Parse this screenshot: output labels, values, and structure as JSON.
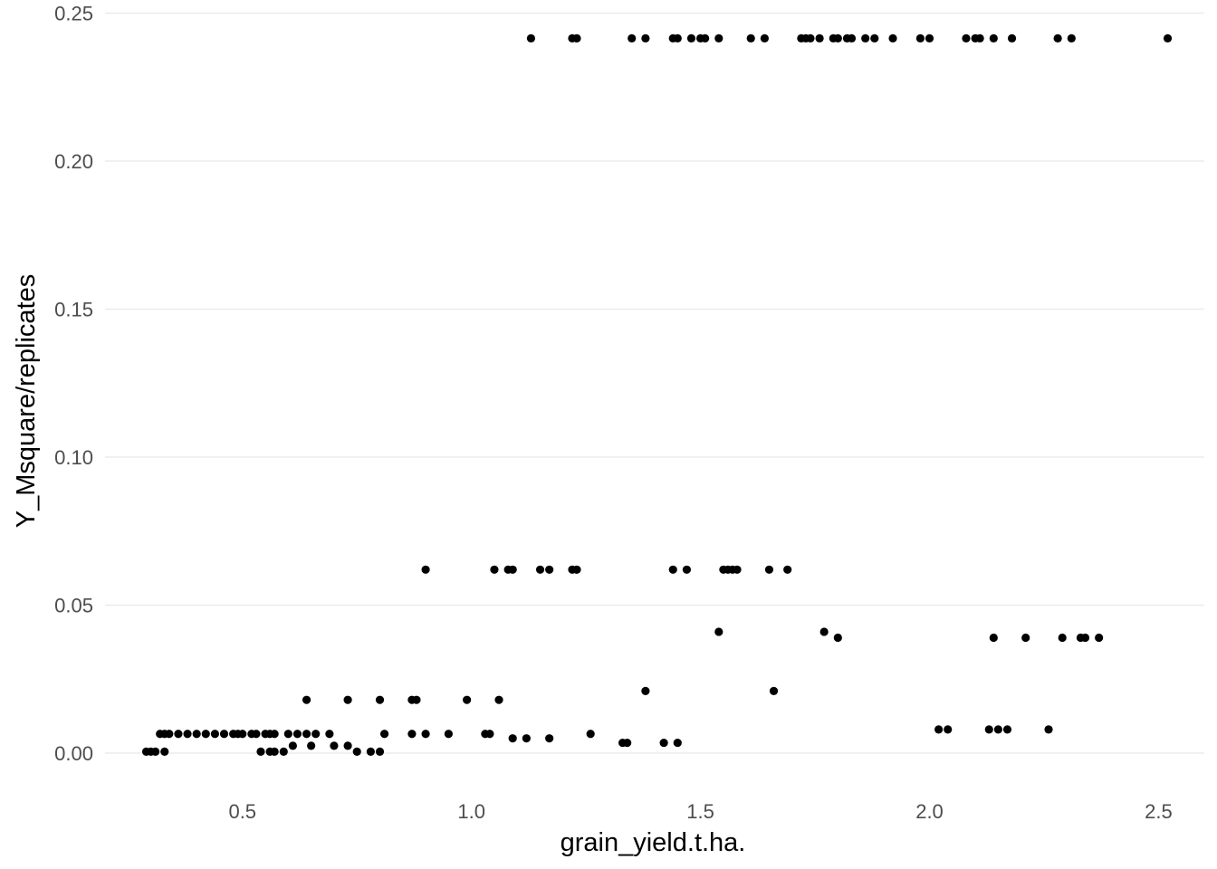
{
  "chart_data": {
    "type": "scatter",
    "title": "",
    "xlabel": "grain_yield.t.ha.",
    "ylabel": "Y_Msquare/replicates",
    "xlim": [
      0.2,
      2.6
    ],
    "ylim": [
      -0.011,
      0.252
    ],
    "grid": true,
    "legend": "none",
    "point_color": "#000000",
    "grid_color": "#ebebeb",
    "x_ticks": [
      {
        "value": 0.5,
        "label": "0.5"
      },
      {
        "value": 1.0,
        "label": "1.0"
      },
      {
        "value": 1.5,
        "label": "1.5"
      },
      {
        "value": 2.0,
        "label": "2.0"
      },
      {
        "value": 2.5,
        "label": "2.5"
      }
    ],
    "y_ticks": [
      {
        "value": 0.0,
        "label": "0.00"
      },
      {
        "value": 0.05,
        "label": "0.05"
      },
      {
        "value": 0.1,
        "label": "0.10"
      },
      {
        "value": 0.15,
        "label": "0.15"
      },
      {
        "value": 0.2,
        "label": "0.20"
      },
      {
        "value": 0.25,
        "label": "0.25"
      }
    ],
    "points": [
      {
        "x": 1.13,
        "y": 0.2415
      },
      {
        "x": 1.22,
        "y": 0.2415
      },
      {
        "x": 1.23,
        "y": 0.2415
      },
      {
        "x": 1.35,
        "y": 0.2415
      },
      {
        "x": 1.38,
        "y": 0.2415
      },
      {
        "x": 1.44,
        "y": 0.2415
      },
      {
        "x": 1.45,
        "y": 0.2415
      },
      {
        "x": 1.48,
        "y": 0.2415
      },
      {
        "x": 1.5,
        "y": 0.2415
      },
      {
        "x": 1.51,
        "y": 0.2415
      },
      {
        "x": 1.54,
        "y": 0.2415
      },
      {
        "x": 1.61,
        "y": 0.2415
      },
      {
        "x": 1.64,
        "y": 0.2415
      },
      {
        "x": 1.72,
        "y": 0.2415
      },
      {
        "x": 1.73,
        "y": 0.2415
      },
      {
        "x": 1.74,
        "y": 0.2415
      },
      {
        "x": 1.76,
        "y": 0.2415
      },
      {
        "x": 1.79,
        "y": 0.2415
      },
      {
        "x": 1.8,
        "y": 0.2415
      },
      {
        "x": 1.82,
        "y": 0.2415
      },
      {
        "x": 1.83,
        "y": 0.2415
      },
      {
        "x": 1.86,
        "y": 0.2415
      },
      {
        "x": 1.88,
        "y": 0.2415
      },
      {
        "x": 1.92,
        "y": 0.2415
      },
      {
        "x": 1.98,
        "y": 0.2415
      },
      {
        "x": 2.0,
        "y": 0.2415
      },
      {
        "x": 2.08,
        "y": 0.2415
      },
      {
        "x": 2.1,
        "y": 0.2415
      },
      {
        "x": 2.11,
        "y": 0.2415
      },
      {
        "x": 2.14,
        "y": 0.2415
      },
      {
        "x": 2.18,
        "y": 0.2415
      },
      {
        "x": 2.28,
        "y": 0.2415
      },
      {
        "x": 2.31,
        "y": 0.2415
      },
      {
        "x": 2.52,
        "y": 0.2415
      },
      {
        "x": 0.9,
        "y": 0.062
      },
      {
        "x": 1.05,
        "y": 0.062
      },
      {
        "x": 1.08,
        "y": 0.062
      },
      {
        "x": 1.09,
        "y": 0.062
      },
      {
        "x": 1.15,
        "y": 0.062
      },
      {
        "x": 1.17,
        "y": 0.062
      },
      {
        "x": 1.22,
        "y": 0.062
      },
      {
        "x": 1.23,
        "y": 0.062
      },
      {
        "x": 1.44,
        "y": 0.062
      },
      {
        "x": 1.47,
        "y": 0.062
      },
      {
        "x": 1.55,
        "y": 0.062
      },
      {
        "x": 1.56,
        "y": 0.062
      },
      {
        "x": 1.57,
        "y": 0.062
      },
      {
        "x": 1.58,
        "y": 0.062
      },
      {
        "x": 1.65,
        "y": 0.062
      },
      {
        "x": 1.69,
        "y": 0.062
      },
      {
        "x": 1.54,
        "y": 0.041
      },
      {
        "x": 1.77,
        "y": 0.041
      },
      {
        "x": 1.8,
        "y": 0.039
      },
      {
        "x": 2.14,
        "y": 0.039
      },
      {
        "x": 2.21,
        "y": 0.039
      },
      {
        "x": 2.29,
        "y": 0.039
      },
      {
        "x": 2.33,
        "y": 0.039
      },
      {
        "x": 2.34,
        "y": 0.039
      },
      {
        "x": 2.37,
        "y": 0.039
      },
      {
        "x": 1.38,
        "y": 0.021
      },
      {
        "x": 1.66,
        "y": 0.021
      },
      {
        "x": 0.64,
        "y": 0.018
      },
      {
        "x": 0.73,
        "y": 0.018
      },
      {
        "x": 0.8,
        "y": 0.018
      },
      {
        "x": 0.87,
        "y": 0.018
      },
      {
        "x": 0.88,
        "y": 0.018
      },
      {
        "x": 0.99,
        "y": 0.018
      },
      {
        "x": 1.06,
        "y": 0.018
      },
      {
        "x": 2.02,
        "y": 0.008
      },
      {
        "x": 2.04,
        "y": 0.008
      },
      {
        "x": 2.13,
        "y": 0.008
      },
      {
        "x": 2.15,
        "y": 0.008
      },
      {
        "x": 2.17,
        "y": 0.008
      },
      {
        "x": 2.26,
        "y": 0.008
      },
      {
        "x": 0.32,
        "y": 0.0065
      },
      {
        "x": 0.33,
        "y": 0.0065
      },
      {
        "x": 0.34,
        "y": 0.0065
      },
      {
        "x": 0.36,
        "y": 0.0065
      },
      {
        "x": 0.38,
        "y": 0.0065
      },
      {
        "x": 0.4,
        "y": 0.0065
      },
      {
        "x": 0.42,
        "y": 0.0065
      },
      {
        "x": 0.44,
        "y": 0.0065
      },
      {
        "x": 0.46,
        "y": 0.0065
      },
      {
        "x": 0.48,
        "y": 0.0065
      },
      {
        "x": 0.49,
        "y": 0.0065
      },
      {
        "x": 0.5,
        "y": 0.0065
      },
      {
        "x": 0.52,
        "y": 0.0065
      },
      {
        "x": 0.53,
        "y": 0.0065
      },
      {
        "x": 0.55,
        "y": 0.0065
      },
      {
        "x": 0.56,
        "y": 0.0065
      },
      {
        "x": 0.57,
        "y": 0.0065
      },
      {
        "x": 0.6,
        "y": 0.0065
      },
      {
        "x": 0.62,
        "y": 0.0065
      },
      {
        "x": 0.64,
        "y": 0.0065
      },
      {
        "x": 0.66,
        "y": 0.0065
      },
      {
        "x": 0.69,
        "y": 0.0065
      },
      {
        "x": 0.81,
        "y": 0.0065
      },
      {
        "x": 0.87,
        "y": 0.0065
      },
      {
        "x": 0.9,
        "y": 0.0065
      },
      {
        "x": 0.95,
        "y": 0.0065
      },
      {
        "x": 1.03,
        "y": 0.0065
      },
      {
        "x": 1.04,
        "y": 0.0065
      },
      {
        "x": 1.26,
        "y": 0.0065
      },
      {
        "x": 1.09,
        "y": 0.005
      },
      {
        "x": 1.12,
        "y": 0.005
      },
      {
        "x": 1.17,
        "y": 0.005
      },
      {
        "x": 1.33,
        "y": 0.0035
      },
      {
        "x": 1.34,
        "y": 0.0035
      },
      {
        "x": 1.42,
        "y": 0.0035
      },
      {
        "x": 1.45,
        "y": 0.0035
      },
      {
        "x": 0.61,
        "y": 0.0025
      },
      {
        "x": 0.65,
        "y": 0.0025
      },
      {
        "x": 0.7,
        "y": 0.0025
      },
      {
        "x": 0.73,
        "y": 0.0025
      },
      {
        "x": 0.29,
        "y": 0.0005
      },
      {
        "x": 0.3,
        "y": 0.0005
      },
      {
        "x": 0.31,
        "y": 0.0005
      },
      {
        "x": 0.33,
        "y": 0.0005
      },
      {
        "x": 0.54,
        "y": 0.0005
      },
      {
        "x": 0.56,
        "y": 0.0005
      },
      {
        "x": 0.57,
        "y": 0.0005
      },
      {
        "x": 0.59,
        "y": 0.0005
      },
      {
        "x": 0.75,
        "y": 0.0005
      },
      {
        "x": 0.78,
        "y": 0.0005
      },
      {
        "x": 0.8,
        "y": 0.0005
      }
    ]
  }
}
